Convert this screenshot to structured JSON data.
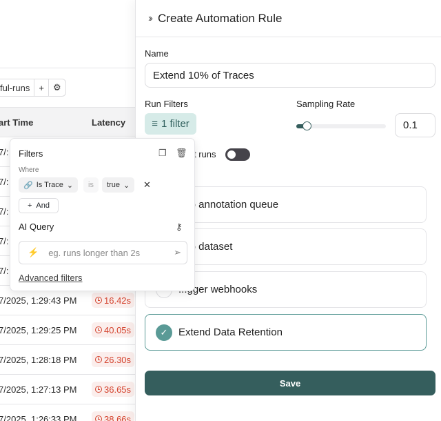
{
  "left": {
    "toolbar": {
      "view_label": "ssful-runs",
      "add_label": "+",
      "settings_icon": "gear-icon"
    },
    "table": {
      "headers": [
        "art Time",
        "Latency"
      ],
      "rows": [
        {
          "start": "7/:",
          "latency": ""
        },
        {
          "start": "7/:",
          "latency": ""
        },
        {
          "start": "7/:",
          "latency": ""
        },
        {
          "start": "7/:",
          "latency": ""
        },
        {
          "start": "7/:",
          "latency": ""
        },
        {
          "start": "7/2025, 1:29:43 PM",
          "latency": "16.42s"
        },
        {
          "start": "7/2025, 1:29:25 PM",
          "latency": "40.05s"
        },
        {
          "start": "7/2025, 1:28:18 PM",
          "latency": "26.30s"
        },
        {
          "start": "7/2025, 1:27:13 PM",
          "latency": "36.65s"
        },
        {
          "start": "7/2025, 1:26:33 PM",
          "latency": "38.66s"
        }
      ]
    }
  },
  "panel": {
    "title": "Create Automation Rule",
    "name_label": "Name",
    "name_value": "Extend 10% of Traces",
    "run_filters_label": "Run Filters",
    "filter_button": "1 filter",
    "sampling_label": "Sampling Rate",
    "sampling_value": "0.1",
    "sampling_fraction": 0.1,
    "toggle_label": "t runs",
    "toggle_on": false,
    "actions": [
      {
        "label": "d to annotation queue",
        "selected": false
      },
      {
        "label": "d to dataset",
        "selected": false
      },
      {
        "label": "...gger webhooks",
        "selected": false
      },
      {
        "label": "Extend Data Retention",
        "selected": true
      }
    ],
    "save_label": "Save",
    "accent": "#355e5d"
  },
  "popover": {
    "title": "Filters",
    "where": "Where",
    "field": "Is Trace",
    "operator": "is",
    "value": "true",
    "and_label": "And",
    "ai_query_label": "AI Query",
    "ai_placeholder": "eg. runs longer than 2s",
    "advanced": "Advanced filters"
  }
}
